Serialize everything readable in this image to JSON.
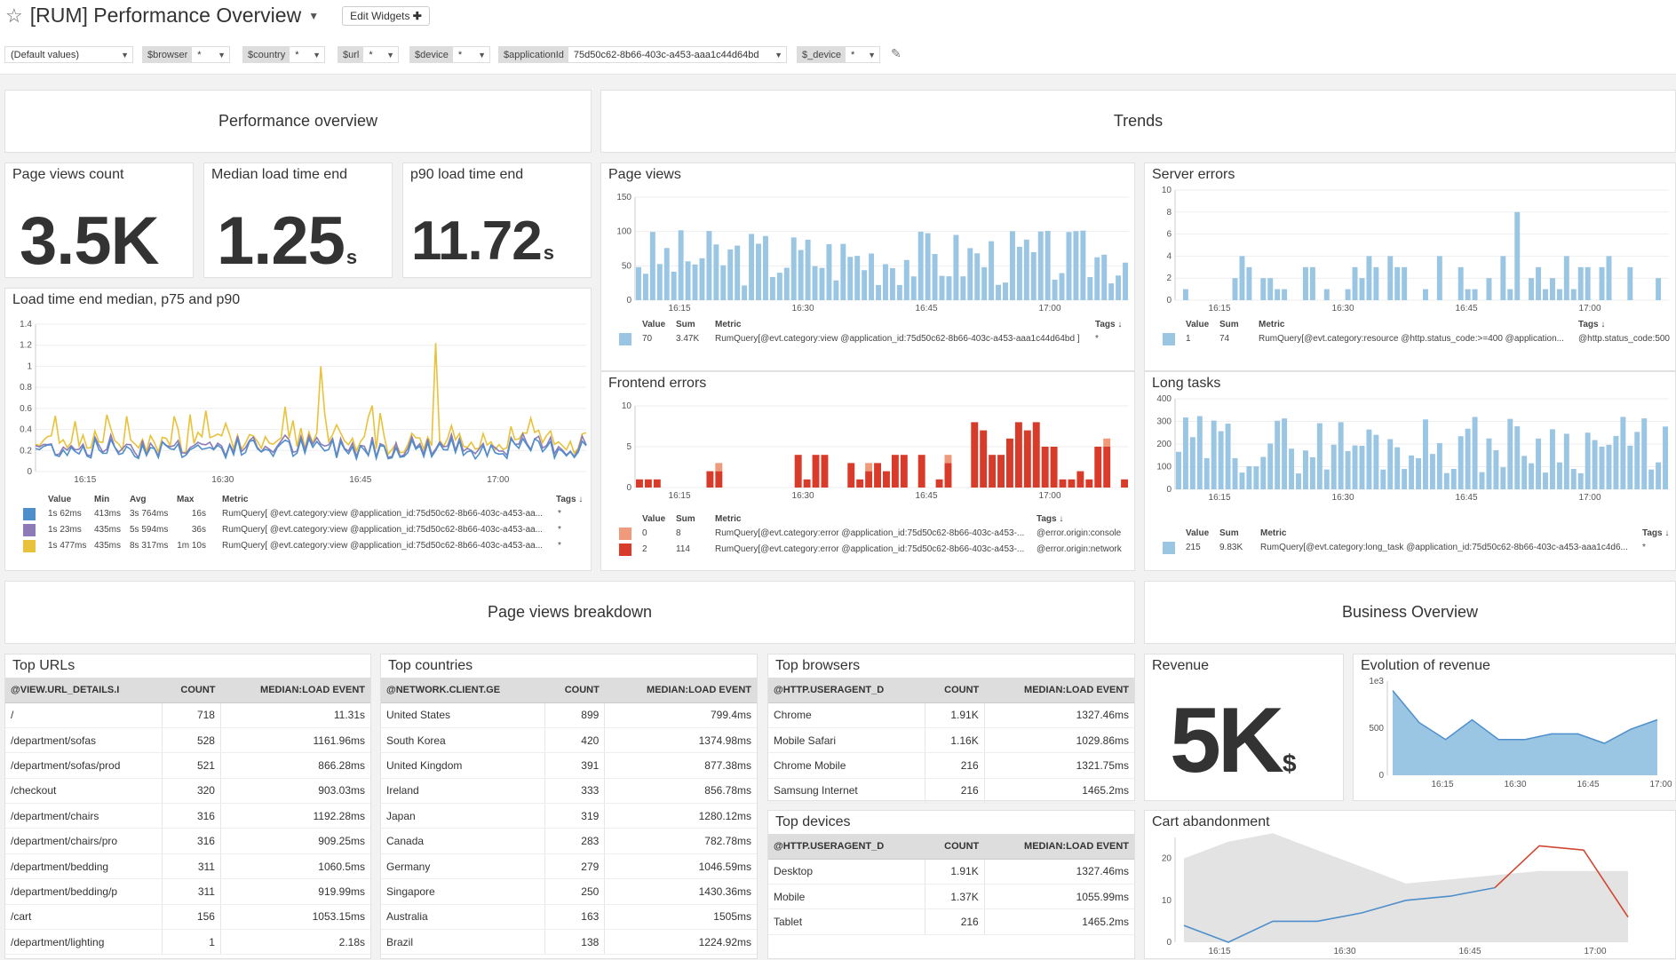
{
  "header": {
    "title": "[RUM] Performance Overview",
    "edit_widgets": "Edit Widgets",
    "edit_icon": "plus-icon"
  },
  "filters": [
    {
      "key": "",
      "value": "(Default values)"
    },
    {
      "key": "$browser",
      "value": "*"
    },
    {
      "key": "$country",
      "value": "*"
    },
    {
      "key": "$url",
      "value": "*"
    },
    {
      "key": "$device",
      "value": "*"
    },
    {
      "key": "$applicationId",
      "value": "75d50c62-8b66-403c-a453-aaa1c44d64bd"
    },
    {
      "key": "$_device",
      "value": "*"
    }
  ],
  "groups": {
    "perf": "Performance overview",
    "trends": "Trends",
    "breakdown": "Page views breakdown",
    "business": "Business Overview"
  },
  "qv": {
    "page_views": {
      "title": "Page views count",
      "value": "3.5K",
      "unit": ""
    },
    "median": {
      "title": "Median load time end",
      "value": "1.25",
      "unit": "s"
    },
    "p90": {
      "title": "p90 load time end",
      "value": "11.72",
      "unit": "s"
    },
    "revenue": {
      "title": "Revenue",
      "value": "5K",
      "unit": "$"
    }
  },
  "x_ticks": [
    "16:15",
    "16:30",
    "16:45",
    "17:00"
  ],
  "legend_headers": {
    "value": "Value",
    "min": "Min",
    "avg": "Avg",
    "max": "Max",
    "sum": "Sum",
    "metric": "Metric",
    "tags": "Tags ↓"
  },
  "load_chart": {
    "title": "Load time end median, p75 and p90",
    "y_ticks": [
      "1.4",
      "1.2",
      "1",
      "0.8",
      "0.6",
      "0.4",
      "0.2",
      "0"
    ],
    "rows": [
      {
        "color": "#4e8fcb",
        "value": "1s 62ms",
        "min": "413ms",
        "avg": "3s 764ms",
        "max": "16s",
        "metric": "RumQuery[ @evt.category:view @application_id:75d50c62-8b66-403c-a453-aa...",
        "tags": "*"
      },
      {
        "color": "#8c7bb7",
        "value": "1s 23ms",
        "min": "435ms",
        "avg": "5s 594ms",
        "max": "36s",
        "metric": "RumQuery[ @evt.category:view @application_id:75d50c62-8b66-403c-a453-aa...",
        "tags": "*"
      },
      {
        "color": "#e8c23a",
        "value": "1s 477ms",
        "min": "435ms",
        "avg": "8s 317ms",
        "max": "1m 10s",
        "metric": "RumQuery[ @evt.category:view @application_id:75d50c62-8b66-403c-a453-aa...",
        "tags": "*"
      }
    ]
  },
  "trends": {
    "page_views": {
      "title": "Page views",
      "y_ticks": [
        "150",
        "100",
        "50",
        "0"
      ],
      "ymax": 150,
      "color": "#9ac6e3",
      "legend": [
        {
          "color": "#9ac6e3",
          "value": "70",
          "sum": "3.47K",
          "metric": "RumQuery[@evt.category:view @application_id:75d50c62-8b66-403c-a453-aaa1c44d64bd ]",
          "tags": "*"
        }
      ]
    },
    "server_errors": {
      "title": "Server errors",
      "y_ticks": [
        "10",
        "8",
        "6",
        "4",
        "2",
        "0"
      ],
      "ymax": 10,
      "color": "#9ac6e3",
      "legend": [
        {
          "color": "#9ac6e3",
          "value": "1",
          "sum": "74",
          "metric": "RumQuery[@evt.category:resource @http.status_code:>=400 @application...",
          "tags": "@http.status_code:500"
        }
      ]
    },
    "frontend_errors": {
      "title": "Frontend errors",
      "y_ticks": [
        "10",
        "5",
        "0"
      ],
      "ymax": 10,
      "legend": [
        {
          "color": "#ef9a7a",
          "value": "0",
          "sum": "8",
          "metric": "RumQuery[@evt.category:error @application_id:75d50c62-8b66-403c-a453-...",
          "tags": "@error.origin:console"
        },
        {
          "color": "#d93b2b",
          "value": "2",
          "sum": "114",
          "metric": "RumQuery[@evt.category:error @application_id:75d50c62-8b66-403c-a453-...",
          "tags": "@error.origin:network"
        }
      ]
    },
    "long_tasks": {
      "title": "Long tasks",
      "y_ticks": [
        "400",
        "300",
        "200",
        "100",
        "0"
      ],
      "ymax": 400,
      "color": "#9ac6e3",
      "legend": [
        {
          "color": "#9ac6e3",
          "value": "215",
          "sum": "9.83K",
          "metric": "RumQuery[@evt.category:long_task @application_id:75d50c62-8b66-403c-a453-aaa1c4d6...",
          "tags": "*"
        }
      ]
    }
  },
  "tables": {
    "top_urls": {
      "title": "Top URLs",
      "headers": [
        "@VIEW.URL_DETAILS.I",
        "COUNT",
        "MEDIAN:LOAD EVENT"
      ],
      "rows": [
        [
          "/",
          "718",
          "11.31s"
        ],
        [
          "/department/sofas",
          "528",
          "1161.96ms"
        ],
        [
          "/department/sofas/prod",
          "521",
          "866.28ms"
        ],
        [
          "/checkout",
          "320",
          "903.03ms"
        ],
        [
          "/department/chairs",
          "316",
          "1192.28ms"
        ],
        [
          "/department/chairs/pro",
          "316",
          "909.25ms"
        ],
        [
          "/department/bedding",
          "311",
          "1060.5ms"
        ],
        [
          "/department/bedding/p",
          "311",
          "919.99ms"
        ],
        [
          "/cart",
          "156",
          "1053.15ms"
        ],
        [
          "/department/lighting",
          "1",
          "2.18s"
        ]
      ]
    },
    "top_countries": {
      "title": "Top countries",
      "headers": [
        "@NETWORK.CLIENT.GE",
        "COUNT",
        "MEDIAN:LOAD EVENT"
      ],
      "rows": [
        [
          "United States",
          "899",
          "799.4ms"
        ],
        [
          "South Korea",
          "420",
          "1374.98ms"
        ],
        [
          "United Kingdom",
          "391",
          "877.38ms"
        ],
        [
          "Ireland",
          "333",
          "856.78ms"
        ],
        [
          "Japan",
          "319",
          "1280.12ms"
        ],
        [
          "Canada",
          "283",
          "782.78ms"
        ],
        [
          "Germany",
          "279",
          "1046.59ms"
        ],
        [
          "Singapore",
          "250",
          "1430.36ms"
        ],
        [
          "Australia",
          "163",
          "1505ms"
        ],
        [
          "Brazil",
          "138",
          "1224.92ms"
        ]
      ]
    },
    "top_browsers": {
      "title": "Top browsers",
      "headers": [
        "@HTTP.USERAGENT_D",
        "COUNT",
        "MEDIAN:LOAD EVENT"
      ],
      "rows": [
        [
          "Chrome",
          "1.91K",
          "1327.46ms"
        ],
        [
          "Mobile Safari",
          "1.16K",
          "1029.86ms"
        ],
        [
          "Chrome Mobile",
          "216",
          "1321.75ms"
        ],
        [
          "Samsung Internet",
          "216",
          "1465.2ms"
        ]
      ]
    },
    "top_devices": {
      "title": "Top devices",
      "headers": [
        "@HTTP.USERAGENT_D",
        "COUNT",
        "MEDIAN:LOAD EVENT"
      ],
      "rows": [
        [
          "Desktop",
          "1.91K",
          "1327.46ms"
        ],
        [
          "Mobile",
          "1.37K",
          "1055.99ms"
        ],
        [
          "Tablet",
          "216",
          "1465.2ms"
        ]
      ]
    }
  },
  "revenue_chart": {
    "title": "Evolution of revenue",
    "y_ticks": [
      "1e3",
      "500",
      "0"
    ],
    "chart_data": {
      "type": "area",
      "x": [
        "16:10",
        "16:15",
        "16:20",
        "16:25",
        "16:30",
        "16:35",
        "16:40",
        "16:45",
        "16:50",
        "16:55",
        "17:00"
      ],
      "y": [
        900,
        560,
        380,
        590,
        380,
        380,
        440,
        440,
        340,
        490,
        590
      ],
      "ylim": [
        0,
        1000
      ]
    }
  },
  "cart_chart": {
    "title": "Cart abandonment",
    "y_ticks": [
      "20",
      "10",
      "0"
    ],
    "chart_data": {
      "type": "line",
      "x": [
        "16:10",
        "16:15",
        "16:20",
        "16:25",
        "16:30",
        "16:35",
        "16:40",
        "16:45",
        "16:50",
        "16:55",
        "17:00"
      ],
      "series": [
        {
          "values": [
            4,
            0,
            5,
            5,
            7,
            10,
            11,
            13,
            23,
            22,
            6
          ]
        }
      ],
      "band_upper": [
        20,
        24,
        26,
        22,
        18,
        14,
        15,
        16,
        17,
        17,
        17
      ],
      "ylim": [
        0,
        25
      ]
    }
  }
}
